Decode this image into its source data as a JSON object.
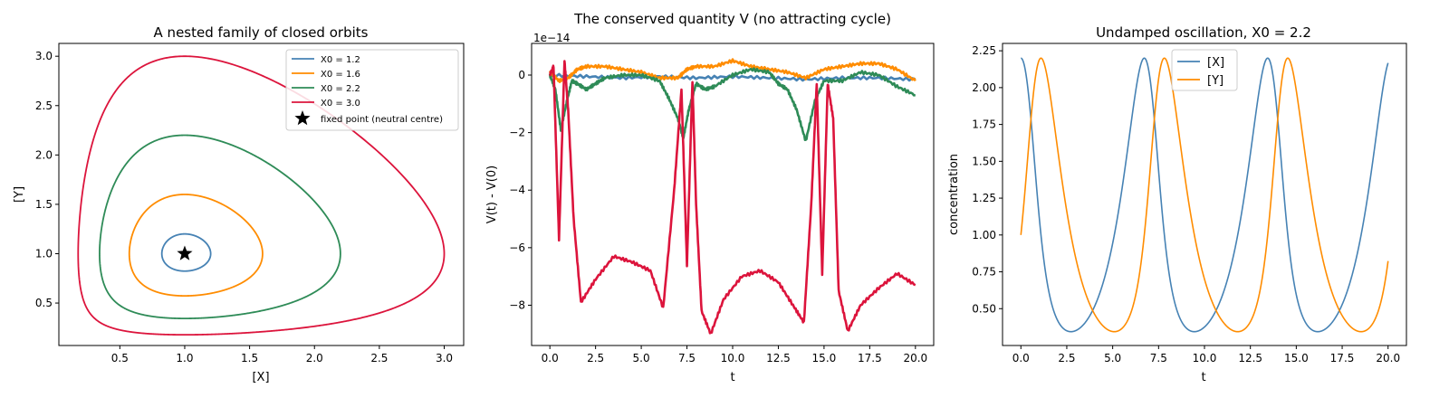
{
  "chart_data": [
    {
      "type": "line",
      "title": "A nested family of closed orbits",
      "xlabel": "[X]",
      "ylabel": "[Y]",
      "xlim": [
        0.03,
        3.15
      ],
      "ylim": [
        0.07,
        3.13
      ],
      "xticks": [
        0.5,
        1.0,
        1.5,
        2.0,
        2.5,
        3.0
      ],
      "yticks": [
        0.5,
        1.0,
        1.5,
        2.0,
        2.5,
        3.0
      ],
      "grid": false,
      "legend": "top-right",
      "orbits": [
        {
          "name": "X0 = 1.2",
          "x0": 1.2,
          "color": "#4682b4"
        },
        {
          "name": "X0 = 1.6",
          "x0": 1.6,
          "color": "#ff8c00"
        },
        {
          "name": "X0 = 2.2",
          "x0": 2.2,
          "color": "#2e8b57"
        },
        {
          "name": "X0 = 3.0",
          "x0": 3.0,
          "color": "#dc143c"
        }
      ],
      "fixed_point": {
        "name": "fixed point (neutral centre)",
        "x": 1.0,
        "y": 1.0,
        "color": "#000000"
      }
    },
    {
      "type": "line",
      "title": "The conserved quantity V (no attracting cycle)",
      "xlabel": "t",
      "ylabel": "V(t) - V(0)",
      "offset_label": "1e−14",
      "xlim": [
        -1.0,
        21.0
      ],
      "ylim": [
        -9.4,
        1.1
      ],
      "xticks": [
        "0.0",
        "2.5",
        "5.0",
        "7.5",
        "10.0",
        "12.5",
        "15.0",
        "17.5",
        "20.0"
      ],
      "yticks": [
        "0",
        "−2",
        "−4",
        "−6",
        "−8"
      ],
      "grid": false,
      "series": [
        {
          "color": "#4682b4",
          "t": [
            0,
            2,
            4,
            6,
            8,
            10,
            12,
            14,
            16,
            18,
            20
          ],
          "v": [
            0.0,
            -0.05,
            -0.1,
            -0.05,
            -0.1,
            -0.05,
            -0.1,
            -0.15,
            -0.1,
            -0.1,
            -0.15
          ]
        },
        {
          "color": "#ff8c00",
          "t": [
            0,
            0.5,
            1,
            1.5,
            2,
            3,
            4,
            5,
            6,
            7,
            7.5,
            8,
            9,
            10,
            11,
            12,
            13,
            14,
            15,
            16,
            17,
            18,
            19,
            20
          ],
          "v": [
            0.1,
            -0.2,
            -0.1,
            0.2,
            0.3,
            0.3,
            0.2,
            0.1,
            -0.1,
            -0.1,
            0.2,
            0.3,
            0.3,
            0.5,
            0.3,
            0.2,
            0.1,
            -0.1,
            0.2,
            0.3,
            0.4,
            0.4,
            0.2,
            -0.2
          ]
        },
        {
          "color": "#2e8b57",
          "t": [
            0,
            0.3,
            0.6,
            0.9,
            1.2,
            1.5,
            2,
            2.5,
            3,
            4,
            5,
            6,
            6.5,
            7,
            7.3,
            7.6,
            8,
            8.5,
            9,
            10,
            11,
            12,
            12.5,
            13,
            13.5,
            14,
            14.5,
            15,
            16,
            17,
            18,
            19,
            20
          ],
          "v": [
            0.0,
            -0.5,
            -1.9,
            -1.0,
            -0.2,
            -0.3,
            -0.5,
            -0.3,
            -0.1,
            0.0,
            0.0,
            -0.2,
            -0.8,
            -1.5,
            -2.2,
            -1.2,
            -0.3,
            -0.5,
            -0.4,
            0.0,
            0.2,
            0.1,
            -0.3,
            -0.5,
            -1.2,
            -2.3,
            -0.9,
            -0.2,
            -0.2,
            0.1,
            0.0,
            -0.4,
            -0.7
          ]
        },
        {
          "color": "#dc143c",
          "t": [
            0,
            0.2,
            0.5,
            0.8,
            1.0,
            1.3,
            1.7,
            2.5,
            3.5,
            4.5,
            5.5,
            6.2,
            6.8,
            7.2,
            7.5,
            7.8,
            8.0,
            8.3,
            8.8,
            9.5,
            10.5,
            11.5,
            12.5,
            13.3,
            13.9,
            14.3,
            14.6,
            14.9,
            15.2,
            15.5,
            15.8,
            16.3,
            17.0,
            18.0,
            19.0,
            20.0
          ],
          "v": [
            0.0,
            0.3,
            -5.7,
            0.5,
            -1.2,
            -5.0,
            -7.9,
            -7.1,
            -6.3,
            -6.5,
            -6.8,
            -8.1,
            -4.0,
            -0.5,
            -6.6,
            -0.2,
            -4.5,
            -8.2,
            -9.0,
            -7.8,
            -7.0,
            -6.8,
            -7.2,
            -8.0,
            -8.6,
            -4.5,
            -0.3,
            -6.9,
            -0.3,
            -1.5,
            -7.5,
            -8.9,
            -8.0,
            -7.4,
            -6.9,
            -7.3
          ]
        }
      ]
    },
    {
      "type": "line",
      "title": "Undamped oscillation, X0 = 2.2",
      "xlabel": "t",
      "ylabel": "concentration",
      "xlim": [
        -1.0,
        21.0
      ],
      "ylim": [
        0.25,
        2.3
      ],
      "xticks": [
        "0.0",
        "2.5",
        "5.0",
        "7.5",
        "10.0",
        "12.5",
        "15.0",
        "17.5",
        "20.0"
      ],
      "yticks": [
        "0.50",
        "0.75",
        "1.00",
        "1.25",
        "1.50",
        "1.75",
        "2.00",
        "2.25"
      ],
      "grid": false,
      "legend": "top-center",
      "x0": 2.2,
      "t_end": 20.0,
      "series": [
        {
          "name": "[X]",
          "color": "#4682b4"
        },
        {
          "name": "[Y]",
          "color": "#ff8c00"
        }
      ]
    }
  ]
}
